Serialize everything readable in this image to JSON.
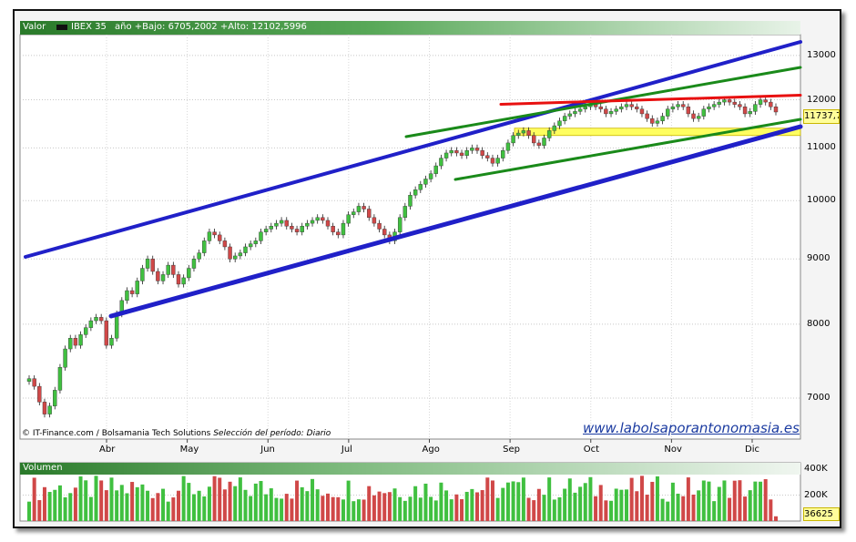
{
  "header": {
    "valor_label": "Valor",
    "symbol": "IBEX 35",
    "range_text": "año +Bajo: 6705,2002 +Alto: 12102,5996"
  },
  "footer": {
    "source": "© IT-Finance.com / Bolsamania Tech Solutions",
    "period": "Selección del período: Diario",
    "brand": "www.labolsaporantonomasia.es"
  },
  "last_value": "11737,7",
  "volume": {
    "label": "Volumen",
    "last": "36625"
  },
  "colors": {
    "up": "#40c040",
    "down": "#d04848",
    "channel": "#2020c8",
    "trend": "#1a8a1a",
    "resistance": "#e81010",
    "support_band": "#fffe60"
  },
  "chart_data": [
    {
      "type": "candlestick",
      "title": "IBEX 35",
      "scale": "log",
      "ylim": [
        6500,
        13500
      ],
      "yticks": [
        7000,
        8000,
        9000,
        10000,
        11000,
        12000,
        13000
      ],
      "x_tick_labels": [
        "Abr",
        "May",
        "Jun",
        "Jul",
        "Ago",
        "Sep",
        "Oct",
        "Nov",
        "Dic"
      ],
      "grid": true,
      "closes": [
        7250,
        7150,
        6950,
        6800,
        6900,
        7100,
        7400,
        7650,
        7800,
        7700,
        7850,
        7950,
        8050,
        8100,
        8050,
        7700,
        7800,
        8150,
        8350,
        8500,
        8450,
        8650,
        8850,
        9000,
        8800,
        8650,
        8750,
        8900,
        8750,
        8600,
        8700,
        8850,
        9000,
        9100,
        9300,
        9450,
        9400,
        9300,
        9200,
        9000,
        9050,
        9100,
        9200,
        9250,
        9300,
        9450,
        9500,
        9550,
        9600,
        9650,
        9550,
        9500,
        9450,
        9550,
        9600,
        9650,
        9700,
        9650,
        9550,
        9450,
        9400,
        9600,
        9750,
        9800,
        9900,
        9850,
        9700,
        9600,
        9500,
        9400,
        9300,
        9450,
        9700,
        9900,
        10100,
        10200,
        10300,
        10400,
        10500,
        10650,
        10800,
        10900,
        10950,
        10900,
        10850,
        10950,
        11000,
        10950,
        10850,
        10800,
        10700,
        10800,
        10950,
        11100,
        11250,
        11300,
        11350,
        11250,
        11100,
        11050,
        11200,
        11350,
        11450,
        11550,
        11650,
        11700,
        11750,
        11800,
        11850,
        11900,
        11850,
        11800,
        11700,
        11750,
        11800,
        11850,
        11900,
        11850,
        11800,
        11700,
        11600,
        11500,
        11550,
        11650,
        11800,
        11850,
        11900,
        11850,
        11700,
        11600,
        11650,
        11800,
        11850,
        11900,
        11950,
        12000,
        11950,
        11900,
        11850,
        11700,
        11750,
        11900,
        12000,
        11950,
        11850,
        11737.7
      ],
      "overlays": [
        {
          "name": "upper-channel",
          "color": "#2020c8"
        },
        {
          "name": "lower-channel",
          "color": "#2020c8"
        },
        {
          "name": "upper-trend",
          "color": "#1a8a1a"
        },
        {
          "name": "lower-trend",
          "color": "#1a8a1a"
        },
        {
          "name": "short-support",
          "color": "#1a8a1a"
        },
        {
          "name": "resistance",
          "color": "#e81010",
          "value": 12100
        },
        {
          "name": "support-band",
          "color": "#fffe60",
          "range": [
            11250,
            11400
          ]
        }
      ]
    },
    {
      "type": "bar",
      "title": "Volumen",
      "yticks": [
        "200K",
        "400K"
      ],
      "ylim": [
        0,
        450000
      ]
    }
  ]
}
